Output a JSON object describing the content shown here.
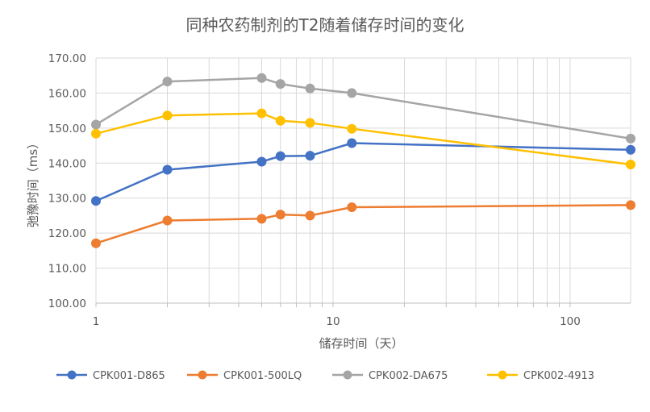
{
  "chart_data": {
    "type": "line",
    "title": "同种农药制剂的T2随着储存时间的变化",
    "xlabel": "储存时间（天）",
    "ylabel": "弛豫时间（ms）",
    "xscale": "log",
    "xlim": [
      1,
      180
    ],
    "ylim": [
      100,
      170
    ],
    "xticks": [
      1,
      10,
      100
    ],
    "xtick_labels": [
      "1",
      "10",
      "100"
    ],
    "yticks": [
      100,
      110,
      120,
      130,
      140,
      150,
      160,
      170
    ],
    "ytick_labels": [
      "100.00",
      "110.00",
      "120.00",
      "130.00",
      "140.00",
      "150.00",
      "160.00",
      "170.00"
    ],
    "grid": true,
    "legend_position": "bottom",
    "x": [
      1,
      2,
      5,
      6,
      8,
      12,
      180
    ],
    "series": [
      {
        "name": "CPK001-D865",
        "color": "#4472C4",
        "values": [
          129.2,
          138.1,
          140.4,
          142.0,
          142.1,
          145.7,
          143.8
        ]
      },
      {
        "name": "CPK001-500LQ",
        "color": "#ED7D31",
        "values": [
          117.1,
          123.6,
          124.1,
          125.3,
          125.0,
          127.4,
          128.0
        ]
      },
      {
        "name": "CPK002-DA675",
        "color": "#A5A5A5",
        "values": [
          151.0,
          163.3,
          164.3,
          162.6,
          161.3,
          160.0,
          147.0
        ]
      },
      {
        "name": "CPK002-4913",
        "color": "#FFC000",
        "values": [
          148.4,
          153.6,
          154.2,
          152.1,
          151.5,
          149.8,
          139.6
        ]
      }
    ]
  }
}
